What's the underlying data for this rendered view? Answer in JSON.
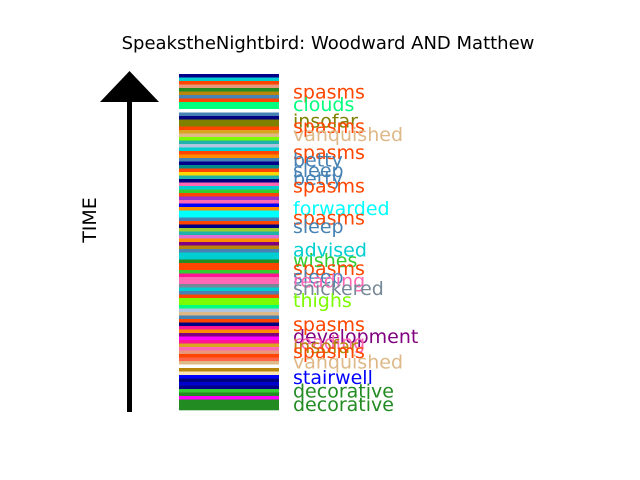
{
  "chart_data": {
    "type": "bar",
    "title": "SpeakstheNightbird: Woodward AND Matthew",
    "ylabel": "TIME",
    "stripes": [
      "#00008b",
      "#00ced1",
      "#ff4500",
      "#e9967a",
      "#228b22",
      "#b8860b",
      "#4682b4",
      "#ff4500",
      "#00ff7f",
      "#00ff7f",
      "#ffffff",
      "#4682b4",
      "#000080",
      "#808000",
      "#808000",
      "#ff4500",
      "#daa520",
      "#deb887",
      "#7cfc00",
      "#20b2aa",
      "#b0c4de",
      "#00ced1",
      "#ff4500",
      "#ff8c00",
      "#4682b4",
      "#00008b",
      "#008b8b",
      "#ff4500",
      "#ffd700",
      "#20b2aa",
      "#000080",
      "#ff69b4",
      "#00ced1",
      "#32cd32",
      "#ff4500",
      "#9932cc",
      "#ff69b4",
      "#0000ff",
      "#ff8c00",
      "#00ffff",
      "#00ffff",
      "#4682b4",
      "#ff4500",
      "#000080",
      "#9acd32",
      "#20b2aa",
      "#da70d6",
      "#ff8c00",
      "#800080",
      "#b8860b",
      "#4682b4",
      "#00ced1",
      "#00ced1",
      "#228b22",
      "#ff4500",
      "#ff4500",
      "#32cd32",
      "#ff1493",
      "#ff69b4",
      "#ff69b4",
      "#778899",
      "#00ced1",
      "#4682b4",
      "#ff4500",
      "#7cfc00",
      "#7cfc00",
      "#00ff7f",
      "#b0c4de",
      "#deb887",
      "#4682b4",
      "#ff4500",
      "#000080",
      "#ff1493",
      "#ff8c00",
      "#800080",
      "#ff00ff",
      "#ff1493",
      "#daa520",
      "#ff69b4",
      "#e9967a",
      "#ff4500",
      "#ff6347",
      "#deb887",
      "#ffffff",
      "#b8860b",
      "#ffe4b5",
      "#0000ff",
      "#000080",
      "#0000cd",
      "#00008b",
      "#32cd32",
      "#228b22",
      "#ff00ff",
      "#228b22",
      "#228b22",
      "#228b22"
    ],
    "labels": [
      {
        "text": "spasms",
        "color": "#ff4500",
        "pos": 0.055
      },
      {
        "text": "clouds",
        "color": "#00ff7f",
        "pos": 0.093
      },
      {
        "text": "insofar",
        "color": "#808000",
        "pos": 0.142
      },
      {
        "text": "spasms",
        "color": "#ff4500",
        "pos": 0.157
      },
      {
        "text": "vanquished",
        "color": "#deb887",
        "pos": 0.182
      },
      {
        "text": "spasms",
        "color": "#ff4500",
        "pos": 0.235
      },
      {
        "text": "betty",
        "color": "#4682b4",
        "pos": 0.258
      },
      {
        "text": "sleep",
        "color": "#4682b4",
        "pos": 0.288
      },
      {
        "text": "betty",
        "color": "#4682b4",
        "pos": 0.312
      },
      {
        "text": "spasms",
        "color": "#ff4500",
        "pos": 0.335
      },
      {
        "text": "forwarded",
        "color": "#00ffff",
        "pos": 0.402
      },
      {
        "text": "spasms",
        "color": "#ff4500",
        "pos": 0.43
      },
      {
        "text": "sleep",
        "color": "#4682b4",
        "pos": 0.455
      },
      {
        "text": "advised",
        "color": "#00ced1",
        "pos": 0.525
      },
      {
        "text": "wishes",
        "color": "#32cd32",
        "pos": 0.557
      },
      {
        "text": "spasms",
        "color": "#ff4500",
        "pos": 0.58
      },
      {
        "text": "sleep",
        "color": "#4682b4",
        "pos": 0.605
      },
      {
        "text": "reading",
        "color": "#ff69b4",
        "pos": 0.617
      },
      {
        "text": "snickered",
        "color": "#778899",
        "pos": 0.64
      },
      {
        "text": "thighs",
        "color": "#7cfc00",
        "pos": 0.675
      },
      {
        "text": "spasms",
        "color": "#ff4500",
        "pos": 0.747
      },
      {
        "text": "development",
        "color": "#800080",
        "pos": 0.782
      },
      {
        "text": "reading",
        "color": "#ff69b4",
        "pos": 0.8
      },
      {
        "text": "insofar",
        "color": "#b8860b",
        "pos": 0.813
      },
      {
        "text": "spasms",
        "color": "#ff4500",
        "pos": 0.828
      },
      {
        "text": "vanquished",
        "color": "#deb887",
        "pos": 0.858
      },
      {
        "text": "stairwell",
        "color": "#0000ff",
        "pos": 0.905
      },
      {
        "text": "decorative",
        "color": "#228b22",
        "pos": 0.945
      },
      {
        "text": "decorative",
        "color": "#228b22",
        "pos": 0.985
      }
    ]
  }
}
